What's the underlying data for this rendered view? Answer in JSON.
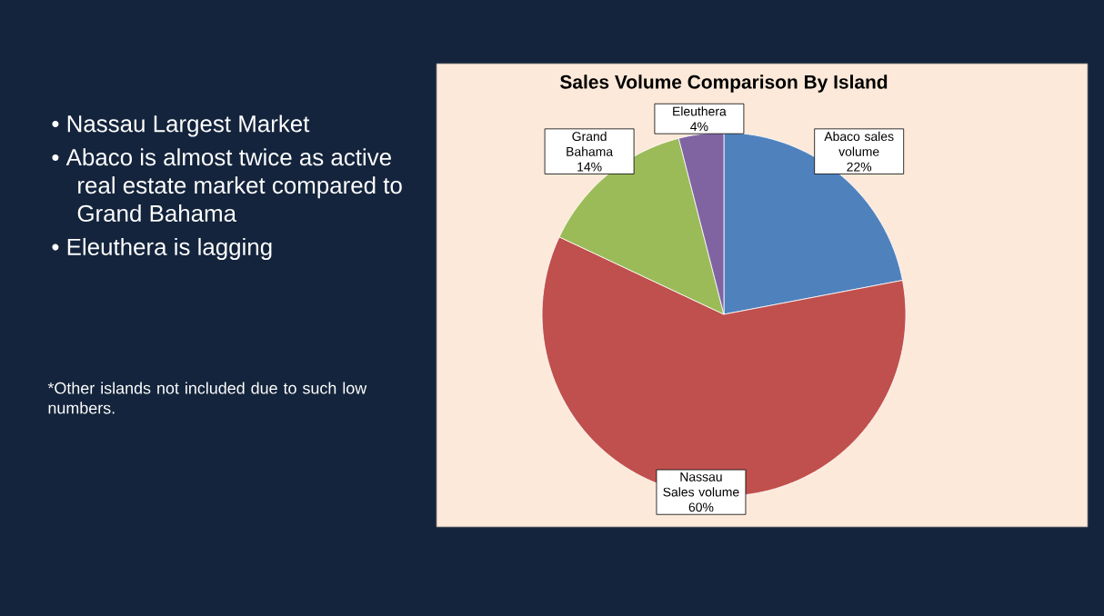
{
  "chart_data": {
    "type": "pie",
    "title": "Sales Volume Comparison By Island",
    "categories": [
      "Abaco sales volume",
      "Nassau Sales volume",
      "Grand Bahama",
      "Eleuthera"
    ],
    "values": [
      22,
      60,
      14,
      4
    ],
    "value_labels": [
      "22%",
      "60%",
      "14%",
      "4%"
    ],
    "colors": [
      "#4f81bd",
      "#c0504d",
      "#9bbb59",
      "#8064a2"
    ],
    "annotations": [
      "• Nassau Largest Market",
      "• Abaco is almost twice as active real estate market compared to Grand Bahama",
      "• Eleuthera is lagging",
      "*Other islands not included due to such low numbers."
    ]
  }
}
